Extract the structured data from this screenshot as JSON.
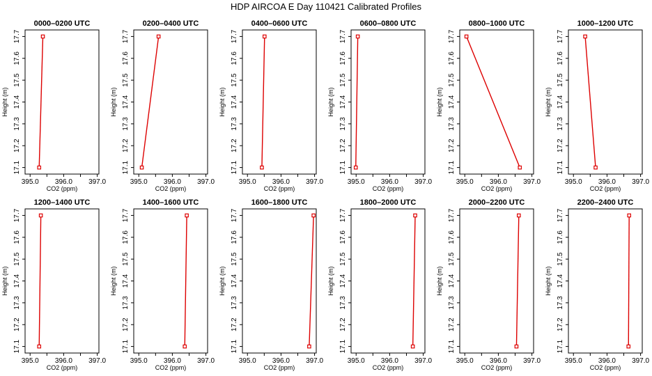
{
  "figure_title": "HDP AIRCOA E  Day 110421  Calibrated Profiles",
  "chart_data": {
    "type": "line",
    "xlabel": "CO2 (ppm)",
    "ylabel": "Height (m)",
    "xlim": [
      394.85,
      397.05
    ],
    "ylim": [
      17.07,
      17.73
    ],
    "x_ticks": [
      "395.0",
      "396.0",
      "397.0"
    ],
    "y_ticks": [
      "17.1",
      "17.2",
      "17.3",
      "17.4",
      "17.5",
      "17.6",
      "17.7"
    ],
    "series_color": "#dd0000",
    "marker": "open-square",
    "grid": false,
    "panels": [
      {
        "title": "0000–0200 UTC",
        "points": [
          {
            "x": 395.27,
            "y": 17.1
          },
          {
            "x": 395.38,
            "y": 17.7
          }
        ]
      },
      {
        "title": "0200–0400 UTC",
        "points": [
          {
            "x": 395.09,
            "y": 17.1
          },
          {
            "x": 395.59,
            "y": 17.7
          }
        ]
      },
      {
        "title": "0400–0600 UTC",
        "points": [
          {
            "x": 395.43,
            "y": 17.1
          },
          {
            "x": 395.51,
            "y": 17.7
          }
        ]
      },
      {
        "title": "0600–0800 UTC",
        "points": [
          {
            "x": 394.99,
            "y": 17.1
          },
          {
            "x": 395.05,
            "y": 17.7
          }
        ]
      },
      {
        "title": "0800–1000 UTC",
        "points": [
          {
            "x": 396.64,
            "y": 17.1
          },
          {
            "x": 395.05,
            "y": 17.7
          }
        ]
      },
      {
        "title": "1000–1200 UTC",
        "points": [
          {
            "x": 395.66,
            "y": 17.1
          },
          {
            "x": 395.35,
            "y": 17.7
          }
        ]
      },
      {
        "title": "1200–1400 UTC",
        "points": [
          {
            "x": 395.27,
            "y": 17.1
          },
          {
            "x": 395.32,
            "y": 17.7
          }
        ]
      },
      {
        "title": "1400–1600 UTC",
        "points": [
          {
            "x": 396.37,
            "y": 17.1
          },
          {
            "x": 396.43,
            "y": 17.7
          }
        ]
      },
      {
        "title": "1600–1800 UTC",
        "points": [
          {
            "x": 396.84,
            "y": 17.1
          },
          {
            "x": 396.97,
            "y": 17.7
          }
        ]
      },
      {
        "title": "1800–2000 UTC",
        "points": [
          {
            "x": 396.69,
            "y": 17.1
          },
          {
            "x": 396.76,
            "y": 17.7
          }
        ]
      },
      {
        "title": "2000–2200 UTC",
        "points": [
          {
            "x": 396.54,
            "y": 17.1
          },
          {
            "x": 396.61,
            "y": 17.7
          }
        ]
      },
      {
        "title": "2200–2400 UTC",
        "points": [
          {
            "x": 396.64,
            "y": 17.1
          },
          {
            "x": 396.66,
            "y": 17.7
          }
        ]
      }
    ]
  }
}
